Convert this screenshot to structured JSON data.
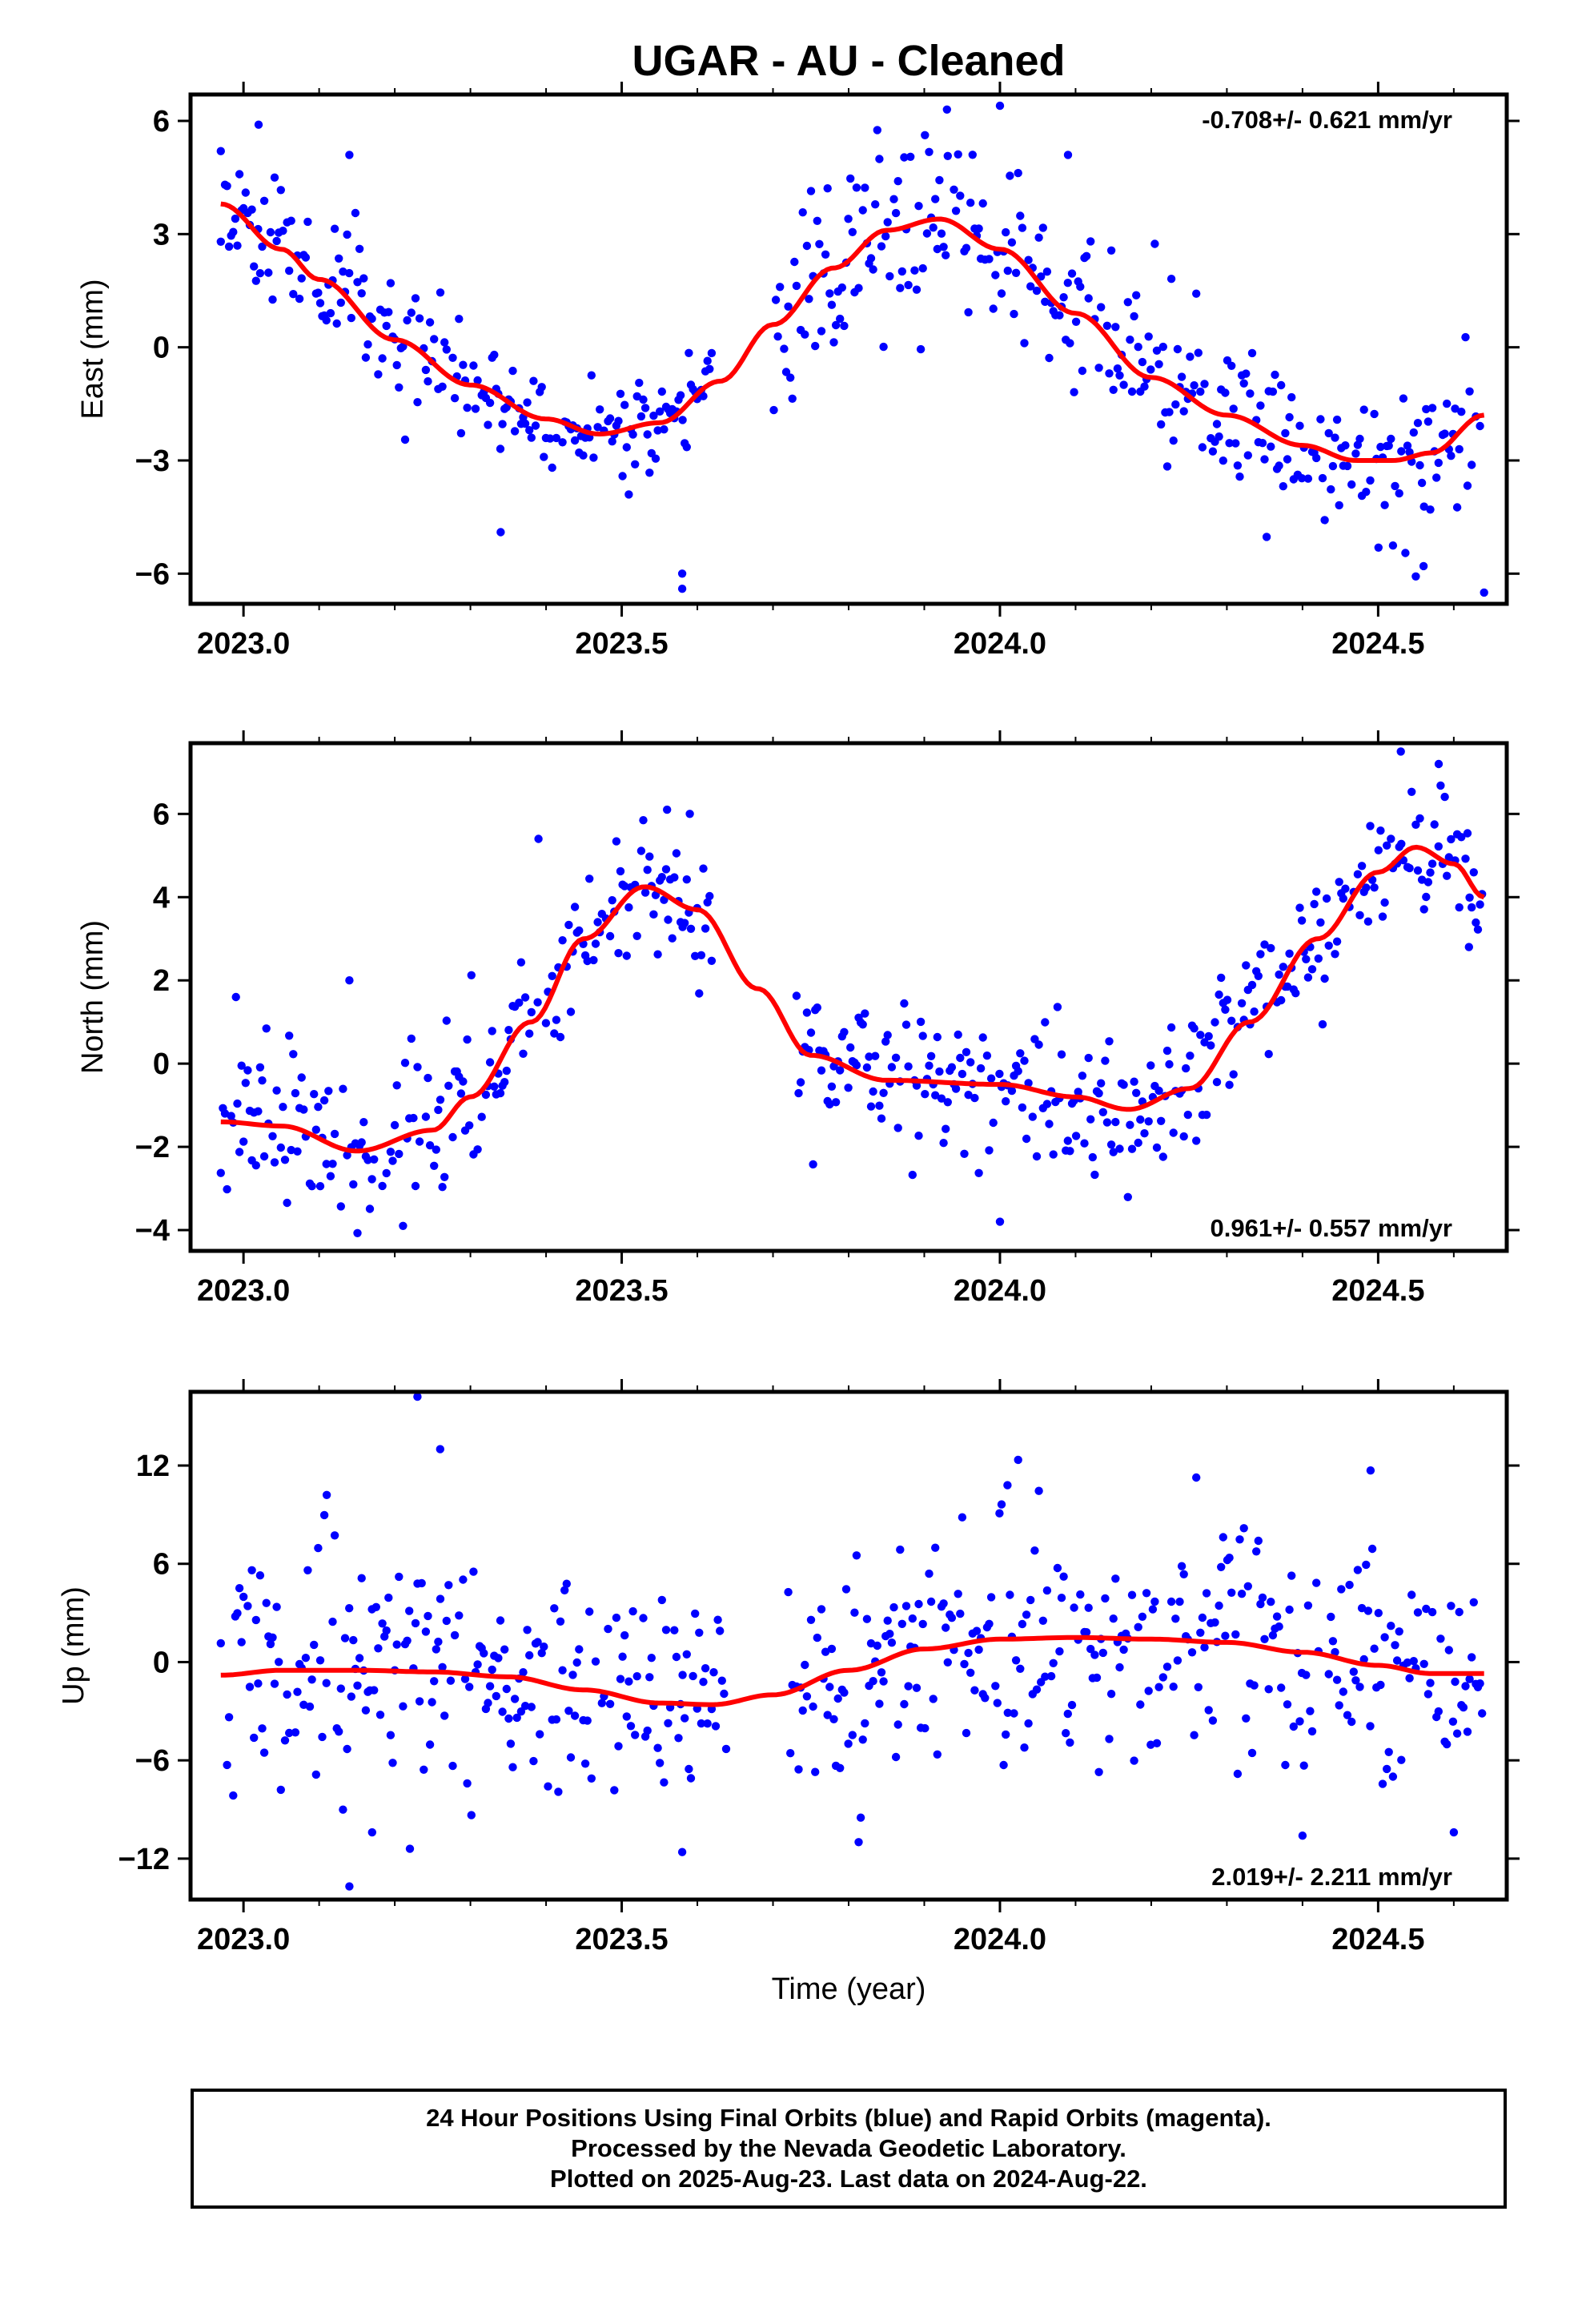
{
  "title": "UGAR  - AU - Cleaned",
  "colors": {
    "points": "#0000ff",
    "fit": "#ff0000",
    "axes": "#000000"
  },
  "chart_data": [
    {
      "type": "scatter",
      "component": "East",
      "ylabel": "East (mm)",
      "xlim": [
        2022.93,
        2024.67
      ],
      "ylim": [
        -6.8,
        6.7
      ],
      "xticks": [
        2023.0,
        2023.5,
        2024.0,
        2024.5
      ],
      "xtick_labels": [
        "2023.0",
        "2023.5",
        "2024.0",
        "2024.5"
      ],
      "yticks": [
        -6,
        -3,
        0,
        3,
        6
      ],
      "ytick_labels": [
        "−6",
        "−3",
        "0",
        "3",
        "6"
      ],
      "rate_label": "-0.708+/- 0.621 mm/yr",
      "rate_position": "top-right",
      "fit_curve": {
        "x": [
          2022.97,
          2023.05,
          2023.1,
          2023.2,
          2023.3,
          2023.4,
          2023.47,
          2023.55,
          2023.63,
          2023.7,
          2023.78,
          2023.85,
          2023.92,
          2024.0,
          2024.1,
          2024.2,
          2024.3,
          2024.4,
          2024.47,
          2024.52,
          2024.57,
          2024.64
        ],
        "y": [
          3.8,
          2.6,
          1.8,
          0.2,
          -1.0,
          -1.9,
          -2.3,
          -2.0,
          -0.9,
          0.6,
          2.1,
          3.1,
          3.4,
          2.6,
          0.9,
          -0.8,
          -1.8,
          -2.6,
          -3.0,
          -3.0,
          -2.8,
          -1.8
        ]
      },
      "points": {
        "x_range": [
          2022.97,
          2024.64
        ],
        "seed": 11,
        "noise": [
          1.05,
          0.62,
          1.25,
          0.95,
          1.1
        ],
        "gap": [
          2023.62,
          2023.7
        ],
        "outliers": [
          [
            2022.97,
            5.2
          ],
          [
            2023.02,
            5.9
          ],
          [
            2023.14,
            5.1
          ],
          [
            2023.34,
            -4.9
          ],
          [
            2023.58,
            -6.0
          ],
          [
            2023.58,
            -6.4
          ],
          [
            2023.93,
            6.3
          ],
          [
            2024.0,
            6.4
          ],
          [
            2024.09,
            5.1
          ],
          [
            2024.56,
            -5.8
          ],
          [
            2024.64,
            -6.5
          ]
        ]
      }
    },
    {
      "type": "scatter",
      "component": "North",
      "ylabel": "North (mm)",
      "xlim": [
        2022.93,
        2024.67
      ],
      "ylim": [
        -4.5,
        7.7
      ],
      "xticks": [
        2023.0,
        2023.5,
        2024.0,
        2024.5
      ],
      "xtick_labels": [
        "2023.0",
        "2023.5",
        "2024.0",
        "2024.5"
      ],
      "yticks": [
        -4,
        -2,
        0,
        2,
        4,
        6
      ],
      "ytick_labels": [
        "−4",
        "−2",
        "0",
        "2",
        "4",
        "6"
      ],
      "rate_label": "0.961+/- 0.557 mm/yr",
      "rate_position": "bottom-right",
      "fit_curve": {
        "x": [
          2022.97,
          2023.05,
          2023.15,
          2023.25,
          2023.3,
          2023.38,
          2023.45,
          2023.53,
          2023.6,
          2023.68,
          2023.75,
          2023.85,
          2024.0,
          2024.1,
          2024.17,
          2024.25,
          2024.33,
          2024.42,
          2024.5,
          2024.55,
          2024.6,
          2024.64
        ],
        "y": [
          -1.4,
          -1.5,
          -2.1,
          -1.6,
          -0.8,
          1.0,
          3.0,
          4.25,
          3.7,
          1.8,
          0.2,
          -0.4,
          -0.5,
          -0.8,
          -1.1,
          -0.6,
          1.0,
          3.0,
          4.6,
          5.2,
          4.8,
          4.0
        ]
      },
      "points": {
        "x_range": [
          2022.97,
          2024.64
        ],
        "seed": 23,
        "noise": [
          0.95,
          0.75,
          0.9,
          0.95,
          0.75
        ],
        "gap": [
          2023.62,
          2023.73
        ],
        "outliers": [
          [
            2022.99,
            1.6
          ],
          [
            2023.14,
            2.0
          ],
          [
            2023.39,
            5.4
          ],
          [
            2023.56,
            6.1
          ],
          [
            2023.59,
            6.0
          ],
          [
            2024.0,
            -3.8
          ],
          [
            2024.53,
            7.5
          ],
          [
            2024.58,
            7.2
          ],
          [
            2024.62,
            2.8
          ]
        ]
      }
    },
    {
      "type": "scatter",
      "component": "Up",
      "ylabel": "Up (mm)",
      "xlabel": "Time (year)",
      "xlim": [
        2022.93,
        2024.67
      ],
      "ylim": [
        -14.5,
        16.5
      ],
      "xticks": [
        2023.0,
        2023.5,
        2024.0,
        2024.5
      ],
      "xtick_labels": [
        "2023.0",
        "2023.5",
        "2024.0",
        "2024.5"
      ],
      "yticks": [
        -12,
        -6,
        0,
        6,
        12
      ],
      "ytick_labels": [
        "−12",
        "−6",
        "0",
        "6",
        "12"
      ],
      "rate_label": "2.019+/- 2.211 mm/yr",
      "rate_position": "bottom-right",
      "fit_curve": {
        "x": [
          2022.97,
          2023.05,
          2023.15,
          2023.25,
          2023.35,
          2023.45,
          2023.55,
          2023.62,
          2023.7,
          2023.8,
          2023.9,
          2024.0,
          2024.1,
          2024.2,
          2024.3,
          2024.4,
          2024.5,
          2024.57,
          2024.64
        ],
        "y": [
          -0.8,
          -0.5,
          -0.5,
          -0.6,
          -0.9,
          -1.7,
          -2.5,
          -2.6,
          -2.0,
          -0.5,
          0.8,
          1.4,
          1.5,
          1.4,
          1.2,
          0.6,
          -0.2,
          -0.7,
          -0.7
        ]
      },
      "points": {
        "x_range": [
          2022.97,
          2024.64
        ],
        "seed": 37,
        "noise": [
          3.6,
          3.0,
          3.4,
          3.6,
          3.2
        ],
        "gap": [
          2023.64,
          2023.72
        ],
        "outliers": [
          [
            2023.23,
            16.2
          ],
          [
            2023.26,
            13.0
          ],
          [
            2023.11,
            10.2
          ],
          [
            2023.14,
            -13.7
          ],
          [
            2023.22,
            -11.4
          ],
          [
            2023.17,
            -10.4
          ],
          [
            2023.58,
            -11.6
          ],
          [
            2024.01,
            10.8
          ],
          [
            2024.49,
            11.7
          ],
          [
            2024.4,
            -10.6
          ],
          [
            2024.6,
            -10.4
          ]
        ]
      }
    }
  ],
  "shared": {
    "xlabel": "Time (year)"
  },
  "footer": {
    "line1": "24 Hour Positions Using Final Orbits (blue) and Rapid Orbits (magenta).",
    "line2": "Processed by the Nevada Geodetic Laboratory.",
    "line3": "Plotted on 2025-Aug-23. Last data on 2024-Aug-22."
  }
}
